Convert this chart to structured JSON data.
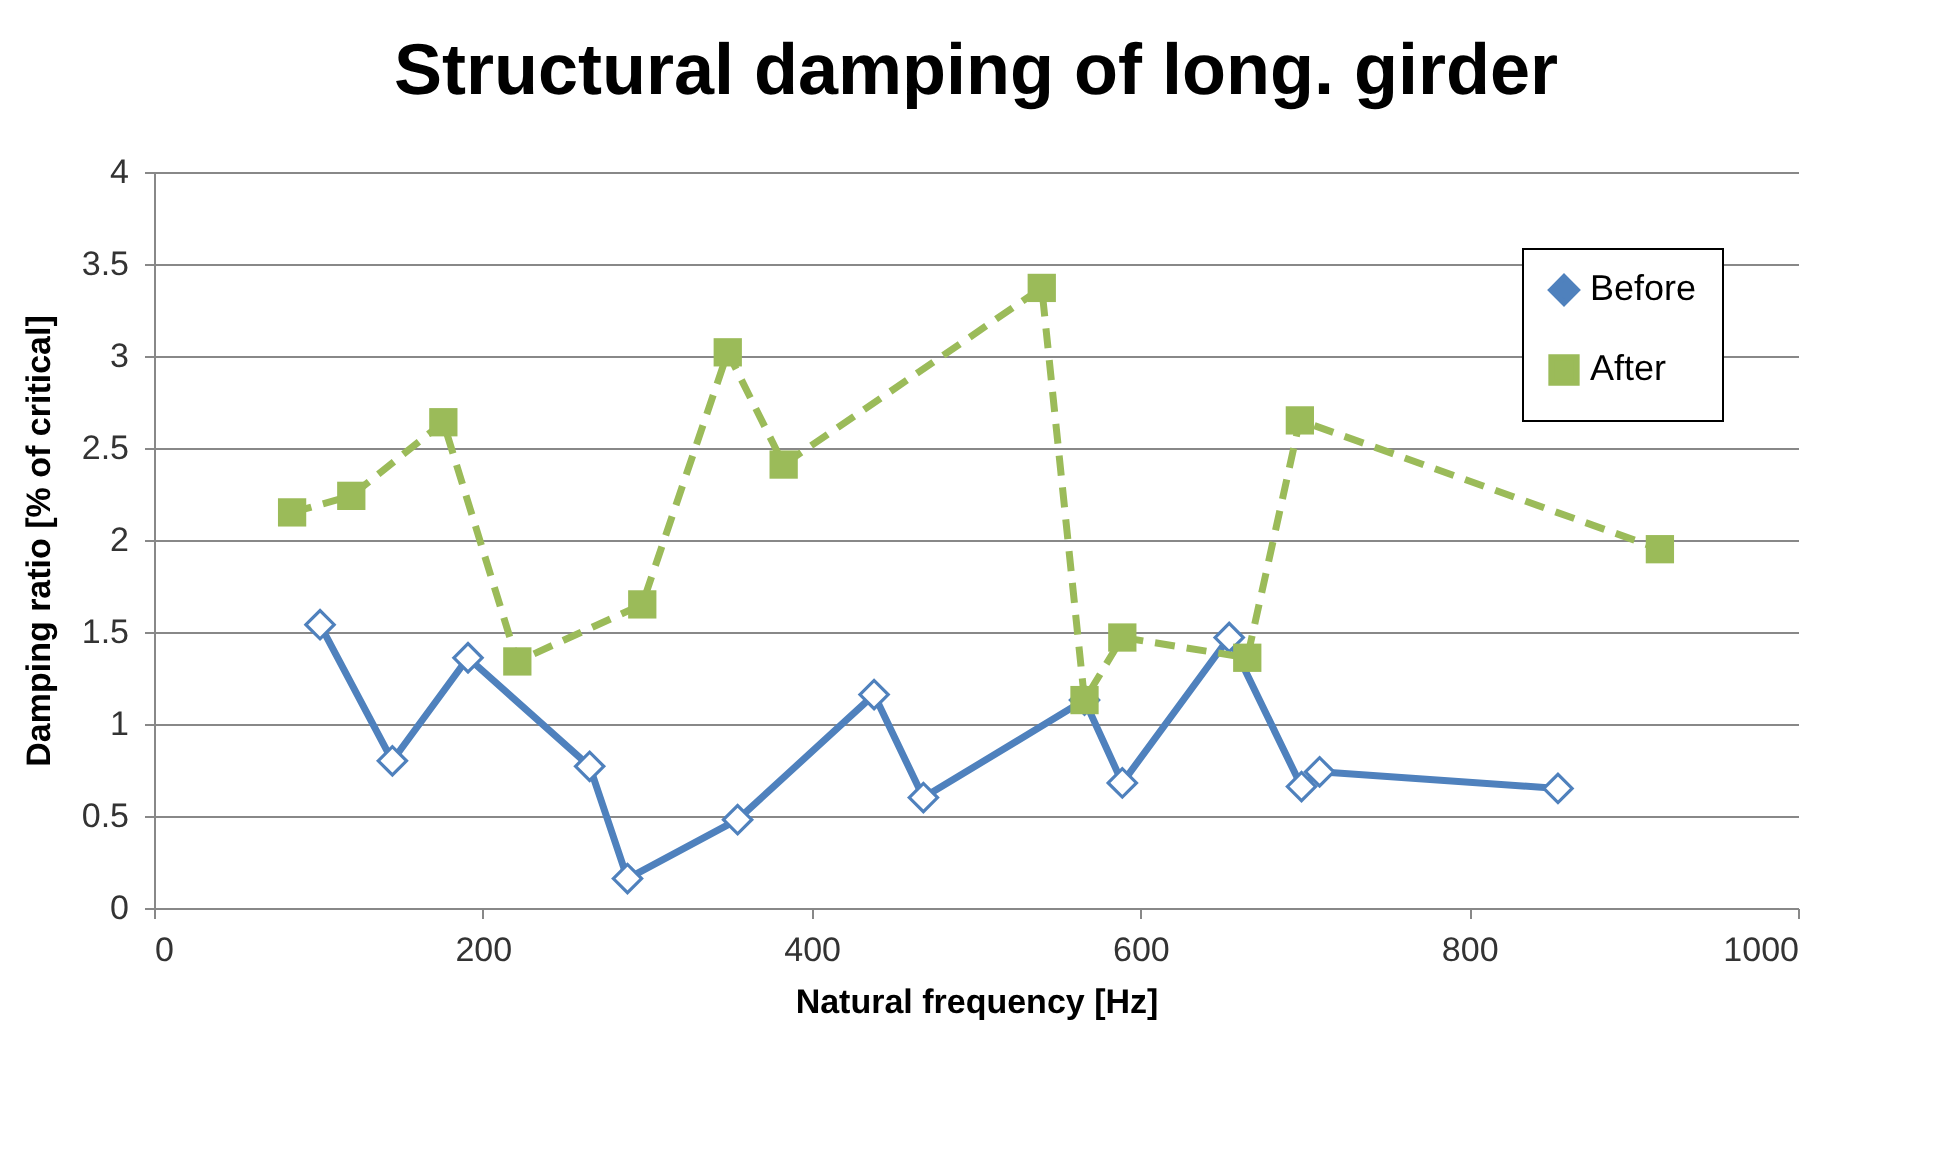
{
  "chart_data": {
    "type": "line",
    "title": "Structural damping of long. girder",
    "xlabel": "Natural frequency [Hz]",
    "ylabel": "Damping ratio [% of critical]",
    "xlim": [
      0,
      1000
    ],
    "xticks": [
      0,
      200,
      400,
      600,
      800,
      1000
    ],
    "ylim": [
      0,
      4
    ],
    "yticks": [
      0,
      0.5,
      1,
      1.5,
      2,
      2.5,
      3,
      3.5,
      4
    ],
    "grid": "y",
    "legend": "top right",
    "series": [
      {
        "name": "Before",
        "color": "#4f81bd",
        "marker": "diamond",
        "line_style": "solid",
        "x": [
          101,
          145,
          191,
          265,
          288,
          355,
          438,
          468,
          566,
          589,
          654,
          698,
          709,
          854
        ],
        "values": [
          1.54,
          0.8,
          1.36,
          0.77,
          0.16,
          0.48,
          1.16,
          0.6,
          1.13,
          0.68,
          1.47,
          0.66,
          0.74,
          0.65
        ]
      },
      {
        "name": "After",
        "color": "#9bbb59",
        "marker": "square",
        "line_style": "dashed",
        "x": [
          84,
          120,
          176,
          221,
          297,
          349,
          383,
          540,
          566,
          589,
          665,
          697,
          916
        ],
        "values": [
          2.15,
          2.24,
          2.64,
          1.34,
          1.65,
          3.02,
          2.41,
          3.37,
          1.13,
          1.47,
          1.36,
          2.65,
          1.95
        ]
      }
    ]
  }
}
